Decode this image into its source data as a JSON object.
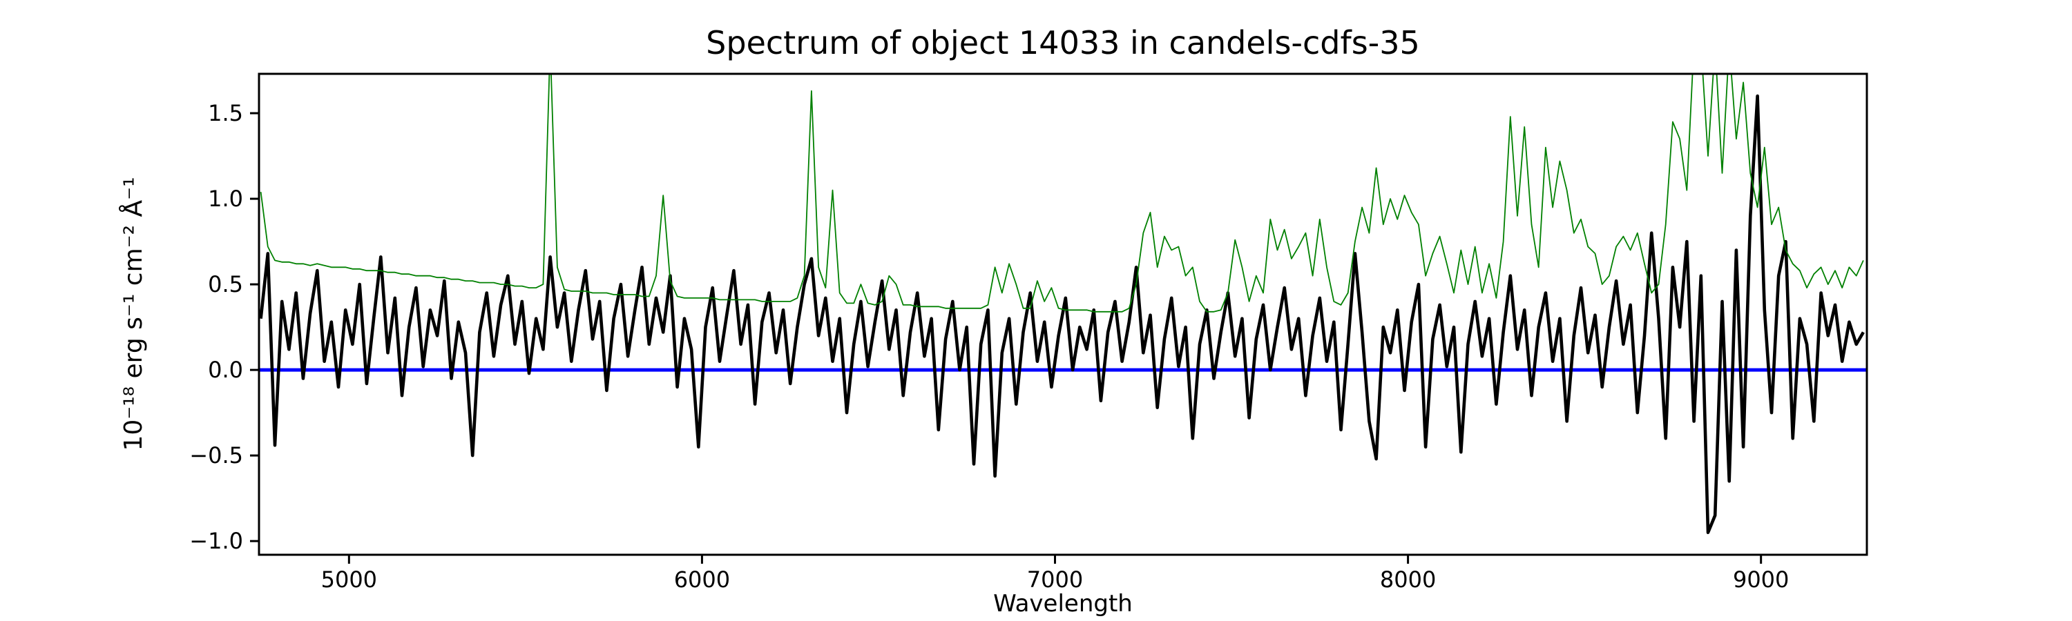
{
  "figure": {
    "title": "Spectrum of object 14033 in candels-cdfs-35",
    "xlabel": "Wavelength",
    "ylabel": "10⁻¹⁸ erg s⁻¹ cm⁻² Å⁻¹",
    "background_color": "#ffffff"
  },
  "chart_data": {
    "type": "line",
    "title": "Spectrum of object 14033 in candels-cdfs-35",
    "xlabel": "Wavelength",
    "ylabel": "10⁻¹⁸ erg s⁻¹ cm⁻² Å⁻¹",
    "xlim": [
      4745,
      9300
    ],
    "ylim": [
      -1.08,
      1.73
    ],
    "grid": false,
    "legend_position": "none",
    "x_ticks": [
      {
        "value": 5000,
        "label": "5000"
      },
      {
        "value": 6000,
        "label": "6000"
      },
      {
        "value": 7000,
        "label": "7000"
      },
      {
        "value": 8000,
        "label": "8000"
      },
      {
        "value": 9000,
        "label": "9000"
      }
    ],
    "y_ticks": [
      {
        "value": 1.5,
        "label": "1.5"
      },
      {
        "value": 1.0,
        "label": "1.0"
      },
      {
        "value": 0.5,
        "label": "0.5"
      },
      {
        "value": 0.0,
        "label": "0.0"
      },
      {
        "value": -0.5,
        "label": "−0.5"
      },
      {
        "value": -1.0,
        "label": "−1.0"
      }
    ],
    "wavelength_start": 4750,
    "wavelength_step": 20,
    "series": [
      {
        "name": "flux-spectrum",
        "color": "#000000",
        "linewidth": 4.6,
        "values": [
          0.3,
          0.68,
          -0.44,
          0.4,
          0.12,
          0.45,
          -0.05,
          0.33,
          0.58,
          0.05,
          0.28,
          -0.1,
          0.35,
          0.15,
          0.5,
          -0.08,
          0.3,
          0.66,
          0.1,
          0.42,
          -0.15,
          0.25,
          0.48,
          0.02,
          0.35,
          0.2,
          0.52,
          -0.05,
          0.28,
          0.1,
          -0.5,
          0.22,
          0.45,
          0.08,
          0.38,
          0.55,
          0.15,
          0.4,
          -0.02,
          0.3,
          0.12,
          0.66,
          0.25,
          0.45,
          0.05,
          0.35,
          0.58,
          0.18,
          0.4,
          -0.12,
          0.3,
          0.5,
          0.08,
          0.35,
          0.6,
          0.15,
          0.42,
          0.22,
          0.55,
          -0.1,
          0.3,
          0.12,
          -0.45,
          0.25,
          0.48,
          0.05,
          0.32,
          0.58,
          0.15,
          0.38,
          -0.2,
          0.28,
          0.45,
          0.1,
          0.35,
          -0.08,
          0.25,
          0.5,
          0.65,
          0.2,
          0.42,
          0.05,
          0.3,
          -0.25,
          0.15,
          0.4,
          0.02,
          0.28,
          0.52,
          0.12,
          0.35,
          -0.15,
          0.22,
          0.45,
          0.08,
          0.3,
          -0.35,
          0.18,
          0.4,
          0.0,
          0.25,
          -0.55,
          0.15,
          0.35,
          -0.62,
          0.1,
          0.3,
          -0.2,
          0.22,
          0.45,
          0.05,
          0.28,
          -0.1,
          0.2,
          0.42,
          0.0,
          0.25,
          0.12,
          0.35,
          -0.18,
          0.22,
          0.4,
          0.05,
          0.28,
          0.6,
          0.1,
          0.32,
          -0.22,
          0.18,
          0.42,
          0.02,
          0.25,
          -0.4,
          0.15,
          0.35,
          -0.05,
          0.22,
          0.45,
          0.08,
          0.3,
          -0.28,
          0.18,
          0.38,
          0.0,
          0.25,
          0.48,
          0.12,
          0.3,
          -0.15,
          0.2,
          0.42,
          0.05,
          0.28,
          -0.35,
          0.15,
          0.68,
          0.22,
          -0.3,
          -0.52,
          0.25,
          0.1,
          0.35,
          -0.12,
          0.28,
          0.5,
          -0.45,
          0.18,
          0.38,
          0.02,
          0.25,
          -0.48,
          0.15,
          0.4,
          0.08,
          0.3,
          -0.2,
          0.22,
          0.55,
          0.12,
          0.35,
          -0.15,
          0.25,
          0.45,
          0.05,
          0.3,
          -0.3,
          0.2,
          0.48,
          0.1,
          0.32,
          -0.1,
          0.25,
          0.52,
          0.15,
          0.38,
          -0.25,
          0.2,
          0.8,
          0.3,
          -0.4,
          0.6,
          0.25,
          0.75,
          -0.3,
          0.55,
          -0.95,
          -0.85,
          0.4,
          -0.65,
          0.7,
          -0.45,
          0.9,
          1.6,
          0.35,
          -0.25,
          0.55,
          0.75,
          -0.4,
          0.3,
          0.15,
          -0.3,
          0.45,
          0.2,
          0.38,
          0.05,
          0.28,
          0.15,
          0.22
        ]
      },
      {
        "name": "noise-spectrum",
        "color": "#008000",
        "linewidth": 1.8,
        "values": [
          1.04,
          0.72,
          0.64,
          0.63,
          0.63,
          0.62,
          0.62,
          0.61,
          0.62,
          0.61,
          0.6,
          0.6,
          0.6,
          0.59,
          0.59,
          0.58,
          0.58,
          0.58,
          0.57,
          0.57,
          0.56,
          0.56,
          0.55,
          0.55,
          0.55,
          0.54,
          0.54,
          0.53,
          0.53,
          0.52,
          0.52,
          0.51,
          0.51,
          0.51,
          0.5,
          0.5,
          0.49,
          0.49,
          0.48,
          0.48,
          0.5,
          1.9,
          0.6,
          0.47,
          0.46,
          0.46,
          0.46,
          0.45,
          0.45,
          0.45,
          0.44,
          0.44,
          0.44,
          0.44,
          0.43,
          0.43,
          0.55,
          1.02,
          0.52,
          0.43,
          0.42,
          0.42,
          0.42,
          0.42,
          0.42,
          0.41,
          0.41,
          0.41,
          0.41,
          0.41,
          0.41,
          0.4,
          0.4,
          0.4,
          0.4,
          0.4,
          0.42,
          0.55,
          1.63,
          0.6,
          0.48,
          1.05,
          0.45,
          0.39,
          0.39,
          0.5,
          0.39,
          0.38,
          0.4,
          0.55,
          0.5,
          0.38,
          0.38,
          0.37,
          0.37,
          0.37,
          0.37,
          0.36,
          0.36,
          0.36,
          0.36,
          0.36,
          0.36,
          0.38,
          0.6,
          0.45,
          0.62,
          0.5,
          0.36,
          0.36,
          0.52,
          0.4,
          0.48,
          0.36,
          0.35,
          0.35,
          0.35,
          0.35,
          0.34,
          0.34,
          0.34,
          0.34,
          0.34,
          0.36,
          0.5,
          0.8,
          0.92,
          0.6,
          0.78,
          0.7,
          0.72,
          0.55,
          0.6,
          0.4,
          0.34,
          0.34,
          0.35,
          0.45,
          0.76,
          0.6,
          0.4,
          0.55,
          0.45,
          0.88,
          0.7,
          0.82,
          0.65,
          0.72,
          0.8,
          0.55,
          0.88,
          0.6,
          0.4,
          0.38,
          0.45,
          0.75,
          0.95,
          0.8,
          1.18,
          0.85,
          1.0,
          0.88,
          1.02,
          0.92,
          0.85,
          0.55,
          0.68,
          0.78,
          0.62,
          0.45,
          0.7,
          0.5,
          0.72,
          0.45,
          0.62,
          0.42,
          0.75,
          1.48,
          0.9,
          1.42,
          0.85,
          0.6,
          1.3,
          0.95,
          1.22,
          1.05,
          0.8,
          0.88,
          0.72,
          0.68,
          0.5,
          0.55,
          0.72,
          0.78,
          0.7,
          0.8,
          0.62,
          0.45,
          0.5,
          0.85,
          1.45,
          1.35,
          1.05,
          1.9,
          1.9,
          1.25,
          1.9,
          1.15,
          1.9,
          1.35,
          1.68,
          1.15,
          0.95,
          1.3,
          0.85,
          0.95,
          0.7,
          0.62,
          0.58,
          0.48,
          0.56,
          0.6,
          0.5,
          0.58,
          0.48,
          0.6,
          0.55,
          0.64
        ]
      }
    ],
    "reference_line": {
      "name": "zero-flux-line",
      "y": 0,
      "color": "#0000ff",
      "linewidth": 5
    }
  }
}
